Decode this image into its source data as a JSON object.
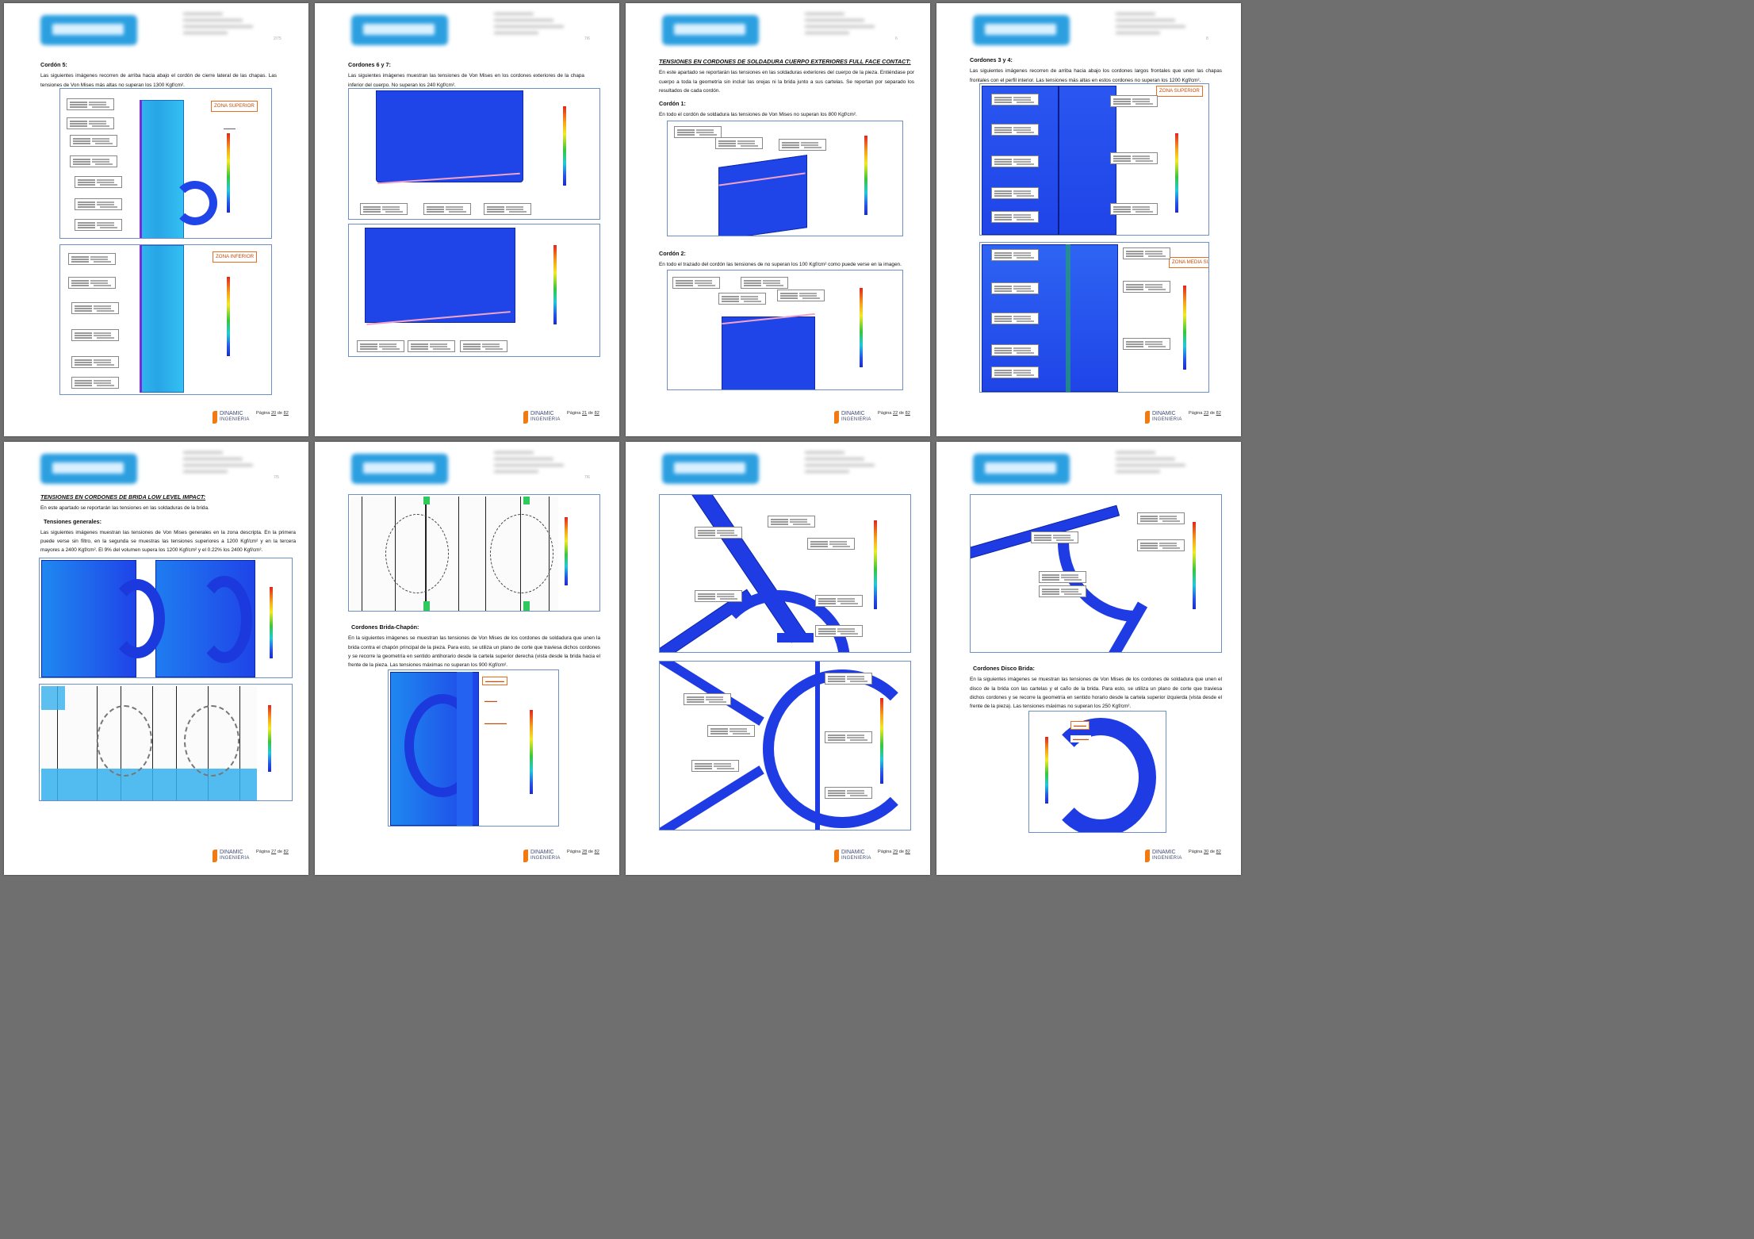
{
  "pages": [
    {
      "index": 0,
      "header_pnum": "2/75",
      "heading": "Cordón 5:",
      "paragraph": "Las siguientes imágenes recorren de arriba hacia abajo el cordón de cierre lateral de las chapas. Las tensiones de Von Mises más altas no superan los 1300 Kgf/cm².",
      "zone_top": "ZONA SUPERIOR",
      "zone_bottom": "ZONA INFERIOR",
      "page_label": "Página",
      "page_num": "20",
      "page_of": "de",
      "page_total": "82"
    },
    {
      "index": 1,
      "header_pnum": "7/6",
      "heading": "Cordones 6 y 7:",
      "paragraph": "Las siguientes imágenes muestran las tensiones de Von Mises en los cordones exteriores de la chapa inferior del cuerpo. No superan los 240 Kgf/cm².",
      "page_label": "Página",
      "page_num": "21",
      "page_of": "de",
      "page_total": "82"
    },
    {
      "index": 2,
      "header_pnum": "6",
      "heading": "TENSIONES EN CORDONES DE SOLDADURA CUERPO EXTERIORES FULL FACE CONTACT:",
      "paragraph": "En este apartado se reportarán las tensiones en las soldaduras exteriores del cuerpo de la pieza. Entiéndase por cuerpo a toda la geometría sin incluir las orejas ni la brida junto a sus cartelas. Se reportan por separado los resultados de cada cordón.",
      "sub1": "Cordón 1:",
      "sub1_text": "En todo el cordón de soldadura las tensiones de Von Mises no superan los 800 Kgf/cm².",
      "sub2": "Cordón 2:",
      "sub2_text": "En todo el trazado del cordón las tensiones de no superan los 100 Kgf/cm² como puede verse en la imagen.",
      "page_label": "Página",
      "page_num": "22",
      "page_of": "de",
      "page_total": "82"
    },
    {
      "index": 3,
      "header_pnum": "8",
      "heading": "Cordones 3 y 4:",
      "paragraph": "Las siguientes imágenes recorren de arriba hacia abajo los cordones largos frontales que unen las chapas frontales con el perfil interior. Las tensiones más altas en estos cordones no superan los 1200 Kgf/cm².",
      "zone_top": "ZONA SUPERIOR",
      "zone_mid": "ZONA MEDIA SUPERIOR",
      "page_label": "Página",
      "page_num": "23",
      "page_of": "de",
      "page_total": "82"
    },
    {
      "index": 4,
      "header_pnum": "7/5",
      "heading": "TENSIONES EN CORDONES DE BRIDA LOW LEVEL IMPACT:",
      "paragraph": "En este apartado se reportarán las tensiones en las soldaduras de la brida.",
      "sub1": "Tensiones generales:",
      "sub1_text": "Las siguientes imágenes muestran las tensiones de Von Mises generales en la zona descripta. En la primera puede verse sin filtro, en la segunda se muestras las tensiones superiores a 1200 Kgf/cm² y en la tercera mayores a 2400 Kgf/cm². El 9% del volumen supera los 1200 Kgf/cm² y el 0.22% los 2400 Kgf/cm².",
      "page_label": "Página",
      "page_num": "27",
      "page_of": "de",
      "page_total": "82"
    },
    {
      "index": 5,
      "header_pnum": "7/6",
      "heading": "Cordones Brida-Chapón:",
      "paragraph": "En la siguientes imágenes se muestran las tensiones de Von Mises de los cordones de soldadura que unen la brida contra el chapón principal de la pieza. Para esto, se utiliza un plano de corte que traviesa dichos cordones y se recorre la geometría en sentido antihorario desde la cartela superior derecha (vista desde la brida hacia el frente de la pieza. Las tensiones máximas no superan los 900 Kgf/cm².",
      "page_label": "Página",
      "page_num": "28",
      "page_of": "de",
      "page_total": "82"
    },
    {
      "index": 6,
      "header_pnum": "",
      "page_label": "Página",
      "page_num": "29",
      "page_of": "de",
      "page_total": "82"
    },
    {
      "index": 7,
      "header_pnum": "",
      "heading": "Cordones Disco Brida:",
      "paragraph": "En la siguientes imágenes se muestran las tensiones de Von Mises de los cordones de soldadura que unen el disco de la brida con las cartelas y el caño de la brida. Para esto, se utiliza un plano de corte que traviesa dichos cordones y se recorre la geometría en sentido horario desde la cartela superior izquierda (vista desde el frente de la pieza). Las tensiones máximas no superan los 250 Kgf/cm².",
      "page_label": "Página",
      "page_num": "30",
      "page_of": "de",
      "page_total": "82"
    }
  ],
  "footer_company": "DINAMIC",
  "footer_company2": "INGENIERIA",
  "colors": {
    "mesh_blue": "#1f44e8",
    "mesh_cyan": "#2fb6ee",
    "zone_orange": "#ea6c1e",
    "figure_border": "#6c8fc6"
  }
}
